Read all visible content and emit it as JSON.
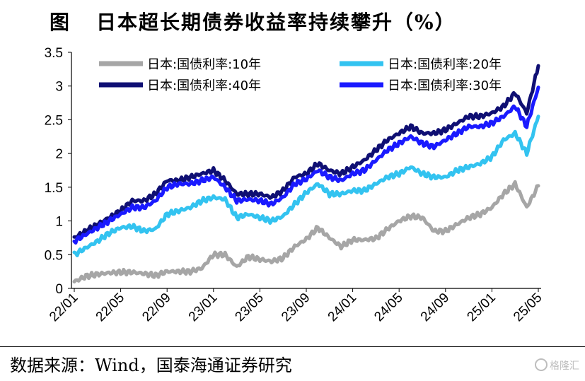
{
  "header": {
    "fig_label": "图",
    "title": "日本超长期债券收益率持续攀升（%）"
  },
  "footer": {
    "source": "数据来源：Wind，国泰海通证券研究"
  },
  "watermark": {
    "text": "格隆汇"
  },
  "chart_data": {
    "type": "line",
    "title": "日本超长期债券收益率持续攀升（%）",
    "xlabel": "",
    "ylabel": "",
    "ylim": [
      0,
      3.5
    ],
    "yticks": [
      "0",
      "0.5",
      "1",
      "1.5",
      "2",
      "2.5",
      "3",
      "3.5"
    ],
    "xticks": [
      "22/01",
      "22/05",
      "22/09",
      "23/01",
      "23/05",
      "23/09",
      "24/01",
      "24/05",
      "24/09",
      "25/01",
      "25/05"
    ],
    "grid": false,
    "legend_position": "top",
    "x": [
      "22/01",
      "22/02",
      "22/03",
      "22/04",
      "22/05",
      "22/06",
      "22/07",
      "22/08",
      "22/09",
      "22/10",
      "22/11",
      "22/12",
      "23/01",
      "23/02",
      "23/03",
      "23/04",
      "23/05",
      "23/06",
      "23/07",
      "23/08",
      "23/09",
      "23/10",
      "23/11",
      "23/12",
      "24/01",
      "24/02",
      "24/03",
      "24/04",
      "24/05",
      "24/06",
      "24/07",
      "24/08",
      "24/09",
      "24/10",
      "24/11",
      "24/12",
      "25/01",
      "25/02",
      "25/03",
      "25/04",
      "25/05"
    ],
    "series": [
      {
        "name": "日本:国债利率:10年",
        "color": "#a6a6a6",
        "values": [
          0.1,
          0.18,
          0.21,
          0.23,
          0.24,
          0.24,
          0.22,
          0.19,
          0.25,
          0.25,
          0.25,
          0.3,
          0.5,
          0.5,
          0.32,
          0.47,
          0.43,
          0.4,
          0.45,
          0.62,
          0.73,
          0.9,
          0.75,
          0.62,
          0.72,
          0.72,
          0.74,
          0.88,
          1.0,
          1.07,
          1.05,
          0.85,
          0.85,
          0.95,
          1.05,
          1.1,
          1.2,
          1.4,
          1.55,
          1.2,
          1.52
        ]
      },
      {
        "name": "日本:国债利率:20年",
        "color": "#33c3f0",
        "values": [
          0.5,
          0.6,
          0.7,
          0.82,
          0.9,
          0.92,
          0.85,
          0.88,
          1.1,
          1.15,
          1.2,
          1.3,
          1.35,
          1.32,
          1.05,
          1.1,
          1.05,
          1.0,
          1.07,
          1.25,
          1.42,
          1.55,
          1.4,
          1.4,
          1.45,
          1.45,
          1.55,
          1.65,
          1.7,
          1.8,
          1.7,
          1.65,
          1.65,
          1.75,
          1.8,
          1.85,
          1.95,
          2.2,
          2.3,
          2.0,
          2.55
        ]
      },
      {
        "name": "日本:国债利率:40年",
        "color": "#0f0f73",
        "values": [
          0.75,
          0.85,
          0.95,
          1.05,
          1.15,
          1.3,
          1.3,
          1.4,
          1.6,
          1.6,
          1.65,
          1.7,
          1.75,
          1.6,
          1.4,
          1.4,
          1.4,
          1.35,
          1.45,
          1.65,
          1.7,
          1.85,
          1.75,
          1.7,
          1.8,
          1.9,
          2.05,
          2.2,
          2.3,
          2.4,
          2.3,
          2.3,
          2.35,
          2.45,
          2.55,
          2.55,
          2.6,
          2.7,
          2.9,
          2.6,
          3.3
        ]
      },
      {
        "name": "日本:国债利率:30年",
        "color": "#1a1aff",
        "values": [
          0.7,
          0.8,
          0.9,
          1.0,
          1.1,
          1.2,
          1.2,
          1.3,
          1.5,
          1.55,
          1.55,
          1.6,
          1.65,
          1.5,
          1.3,
          1.32,
          1.3,
          1.25,
          1.35,
          1.55,
          1.62,
          1.75,
          1.65,
          1.6,
          1.7,
          1.75,
          1.9,
          2.05,
          2.15,
          2.25,
          2.15,
          2.1,
          2.2,
          2.3,
          2.4,
          2.4,
          2.45,
          2.55,
          2.7,
          2.4,
          2.98
        ]
      }
    ]
  }
}
